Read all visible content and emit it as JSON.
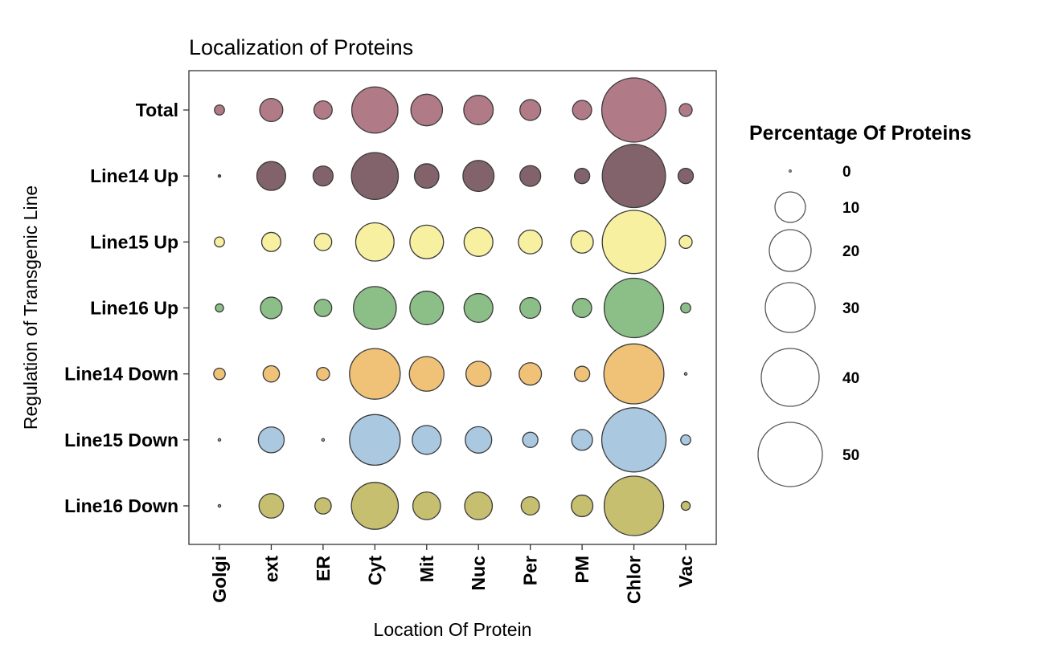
{
  "chart_data": {
    "type": "bubble",
    "title": "Localization of Proteins",
    "xlabel": "Location Of Protein",
    "ylabel": "Regulation of Transgenic Line",
    "categories_x": [
      "Golgi",
      "ext",
      "ER",
      "Cyt",
      "Mit",
      "Nuc",
      "Per",
      "PM",
      "Chlor",
      "Vac"
    ],
    "categories_y": [
      "Total",
      "Line14 Up",
      "Line15 Up",
      "Line16 Up",
      "Line14 Down",
      "Line15 Down",
      "Line16 Down"
    ],
    "series": [
      {
        "row": "Total",
        "color": "#b07a86",
        "values": [
          1.5,
          8,
          5,
          32,
          15,
          13,
          6.5,
          5.5,
          62,
          2.5
        ]
      },
      {
        "row": "Line14 Up",
        "color": "#82636b",
        "values": [
          0.1,
          12.5,
          6,
          33,
          9,
          14.5,
          6.5,
          3.5,
          60,
          3.5
        ]
      },
      {
        "row": "Line15 Up",
        "color": "#f7f0a0",
        "values": [
          1.5,
          5.5,
          4.5,
          22,
          17,
          12.5,
          8.5,
          7.5,
          60,
          2.5
        ]
      },
      {
        "row": "Line16 Up",
        "color": "#8cbf88",
        "values": [
          1,
          7,
          4.5,
          27.5,
          17,
          12.5,
          6.5,
          5.5,
          53,
          1.5
        ]
      },
      {
        "row": "Line14 Down",
        "color": "#f0c278",
        "values": [
          2,
          4,
          2.5,
          38.5,
          18,
          9.5,
          7.5,
          3.5,
          54,
          0.1
        ]
      },
      {
        "row": "Line15 Down",
        "color": "#aac8e0",
        "values": [
          0.1,
          10,
          0.1,
          38.5,
          12.5,
          10.5,
          3.5,
          6.5,
          62,
          1.5
        ]
      },
      {
        "row": "Line16 Down",
        "color": "#c6bf70",
        "values": [
          0.1,
          9,
          4,
          33,
          11.5,
          11.5,
          5,
          7,
          53,
          1.2
        ]
      }
    ],
    "size_legend": {
      "title": "Percentage Of Proteins",
      "breaks": [
        0,
        10,
        20,
        30,
        40,
        50
      ]
    },
    "grid": false,
    "legend_position": "right"
  }
}
